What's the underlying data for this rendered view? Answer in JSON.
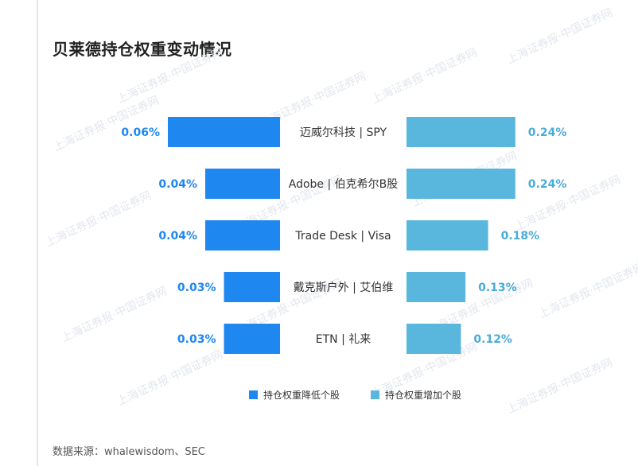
{
  "title": "贝莱德持仓权重变动情况",
  "source": "数据来源：whalewisdom、SEC",
  "watermark": "上海证券报·中国证券网",
  "colors": {
    "decrease": "#1f87f0",
    "increase": "#59b6dc",
    "decrease_label": "#1f87f0",
    "increase_label": "#48acd8",
    "category_text": "#333333",
    "watermark": "#e3e7ee"
  },
  "chart_data": {
    "type": "bar",
    "orientation": "horizontal-diverging",
    "categories": [
      "迈威尔科技 | SPY",
      "Adobe | 伯克希尔B股",
      "Trade Desk | Visa",
      "戴克斯户外 | 艾伯维",
      "ETN | 礼来"
    ],
    "series": [
      {
        "name": "持仓权重降低个股",
        "side": "left",
        "values": [
          0.06,
          0.04,
          0.04,
          0.03,
          0.03
        ],
        "labels": [
          "0.06%",
          "0.04%",
          "0.04%",
          "0.03%",
          "0.03%"
        ]
      },
      {
        "name": "持仓权重增加个股",
        "side": "right",
        "values": [
          0.24,
          0.24,
          0.18,
          0.13,
          0.12
        ],
        "labels": [
          "0.24%",
          "0.24%",
          "0.18%",
          "0.13%",
          "0.12%"
        ]
      }
    ],
    "legend_position": "bottom-center",
    "grid": false
  }
}
